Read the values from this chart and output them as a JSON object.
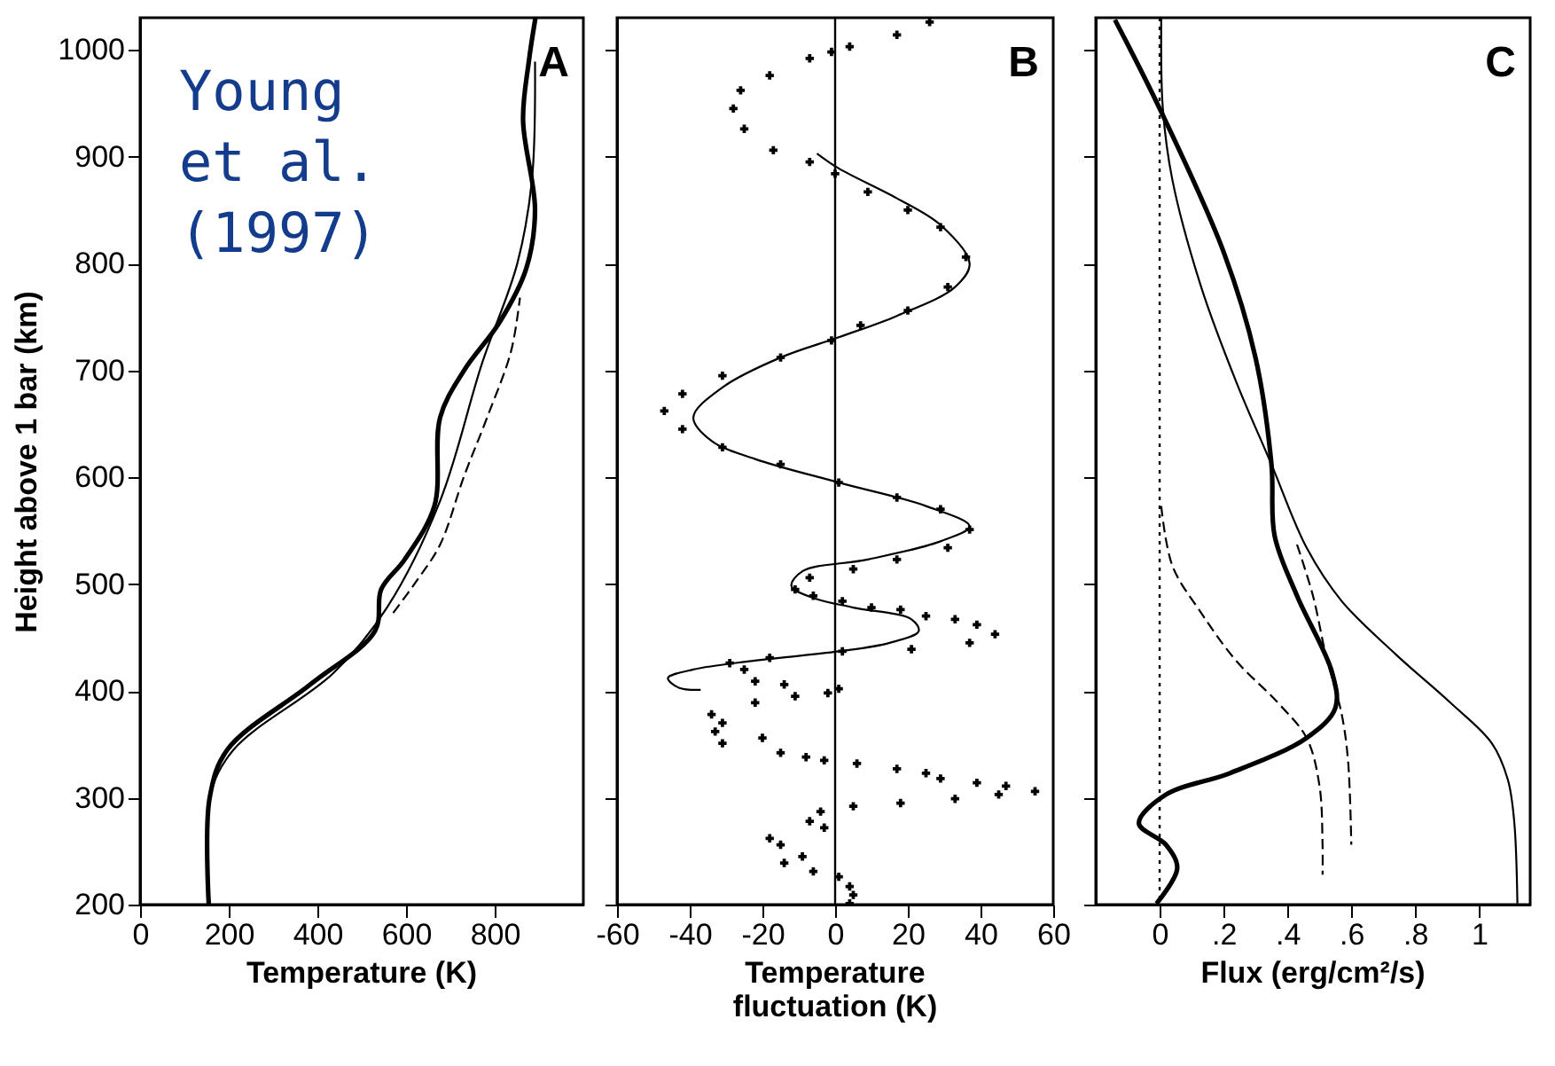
{
  "chart_data": [
    {
      "type": "line",
      "xlabel": "Temperature (K)",
      "ylabel": "Height above 1 bar (km)",
      "xlim": [
        0,
        1000
      ],
      "ylim": [
        200,
        1030
      ],
      "xticks": [
        0,
        200,
        400,
        600,
        800
      ],
      "yticks": [
        200,
        300,
        400,
        500,
        600,
        700,
        800,
        900,
        1000
      ],
      "annotations": [
        "A",
        "Young et al. (1997)"
      ],
      "grid": false,
      "marker": "none",
      "series": [
        {
          "color": "#000000",
          "line_style": "solid",
          "x": [
            155,
            157,
            197,
            384,
            530,
            544,
            597,
            664,
            677,
            731,
            811,
            871,
            891,
            864,
            877,
            892
          ],
          "values": [
            200,
            300,
            345,
            406,
            456,
            495,
            523,
            573,
            656,
            700,
            745,
            795,
            850,
            934,
            989,
            1030
          ]
        },
        {
          "color": "#000000",
          "line_style": "solid",
          "x": [
            157,
            157,
            211,
            437,
            557,
            677,
            771,
            851,
            884,
            891
          ],
          "values": [
            200,
            300,
            345,
            417,
            478,
            578,
            706,
            800,
            878,
            989
          ]
        },
        {
          "color": "#000000",
          "line_style": "dashed",
          "x": [
            571,
            624,
            677,
            731,
            784,
            837,
            857
          ],
          "values": [
            473,
            503,
            537,
            601,
            657,
            718,
            768
          ]
        }
      ]
    },
    {
      "type": "line",
      "xlabel": "Temperature fluctuation (K)",
      "xlim": [
        -60,
        60
      ],
      "ylim": [
        200,
        1030
      ],
      "xticks": [
        -60,
        -40,
        -20,
        0,
        20,
        40,
        60
      ],
      "yticks": [
        200,
        300,
        400,
        500,
        600,
        700,
        800,
        900,
        1000
      ],
      "tick_labels": "x",
      "annotations": [
        "B"
      ],
      "grid": false,
      "ref_lines": [
        {
          "axis": "x",
          "value": 0
        }
      ],
      "series": [
        {
          "type": "scatter",
          "marker": "cross",
          "color": "#000000",
          "x": [
            26,
            17,
            4,
            -1,
            -7,
            -18,
            -26,
            -28,
            -25,
            -17,
            -7,
            0,
            9,
            20,
            29,
            36,
            31,
            20,
            7,
            -1,
            -15,
            -31,
            -42,
            -47,
            -42,
            -31,
            -15,
            1,
            17,
            29,
            37,
            31,
            17,
            5,
            -7,
            -11,
            -6,
            2,
            10,
            18,
            25,
            33,
            39,
            44,
            37,
            21,
            2,
            -18,
            -29,
            -25,
            -22,
            -14,
            -11,
            -22,
            -2,
            1,
            -34,
            -31,
            -33,
            -31,
            -20,
            -15,
            -8,
            -3,
            6,
            17,
            25,
            29,
            39,
            47,
            55,
            45,
            33,
            18,
            5,
            -4,
            -7,
            -3,
            -18,
            -15,
            -9,
            -14,
            -6,
            1,
            4,
            5,
            4
          ],
          "values": [
            1026,
            1014,
            1003,
            998,
            992,
            976,
            962,
            945,
            926,
            906,
            895,
            884,
            867,
            850,
            834,
            806,
            778,
            756,
            742,
            728,
            712,
            695,
            678,
            662,
            645,
            628,
            612,
            595,
            581,
            570,
            551,
            534,
            523,
            514,
            506,
            495,
            489,
            484,
            478,
            476,
            470,
            467,
            462,
            453,
            445,
            439,
            437,
            431,
            426,
            420,
            409,
            406,
            395,
            389,
            398,
            402,
            378,
            370,
            362,
            351,
            356,
            342,
            338,
            335,
            332,
            327,
            323,
            318,
            314,
            311,
            306,
            303,
            299,
            295,
            292,
            287,
            278,
            272,
            262,
            256,
            245,
            239,
            231,
            226,
            217,
            209,
            201
          ]
        },
        {
          "type": "line",
          "marker": "none",
          "line_style": "solid",
          "color": "#000000",
          "x": [
            -5,
            1,
            17,
            29,
            37,
            33,
            17,
            1,
            -15,
            -31,
            -39,
            -34,
            -22,
            1,
            25,
            37,
            29,
            9,
            -9,
            -12,
            -6,
            5,
            21,
            23,
            15,
            1,
            -23,
            -39,
            -46,
            -43,
            -37
          ],
          "values": [
            903,
            889,
            861,
            836,
            800,
            778,
            751,
            731,
            712,
            684,
            656,
            634,
            617,
            595,
            573,
            554,
            540,
            523,
            512,
            498,
            487,
            478,
            467,
            456,
            445,
            437,
            428,
            420,
            412,
            403,
            401
          ]
        }
      ]
    },
    {
      "type": "line",
      "xlabel": "Flux (erg/cm²/s)",
      "xlim": [
        -0.2,
        1.16
      ],
      "ylim": [
        200,
        1030
      ],
      "xticks": [
        0,
        {
          "value": 0.2,
          "label": ".2"
        },
        {
          "value": 0.4,
          "label": ".4"
        },
        {
          "value": 0.6,
          "label": ".6"
        },
        {
          "value": 0.8,
          "label": ".8"
        },
        1
      ],
      "yticks": [
        200,
        300,
        400,
        500,
        600,
        700,
        800,
        900,
        1000
      ],
      "tick_labels": "x",
      "annotations": [
        "C"
      ],
      "grid": false,
      "marker": "none",
      "ref_lines": [
        {
          "axis": "x",
          "value": 0,
          "line_style": "dotted"
        }
      ],
      "series": [
        {
          "color": "#000000",
          "line_style": "solid",
          "x": [
            -0.14,
            0,
            0.2,
            0.3,
            0.35,
            0.36,
            0.43,
            0.54,
            0.55,
            0.46,
            0.22,
            0.02,
            -0.065,
            0.02,
            0.055,
            -0.01
          ],
          "values": [
            1028,
            945,
            811,
            712,
            612,
            545,
            489,
            417,
            384,
            356,
            323,
            303,
            276,
            256,
            234,
            201
          ]
        },
        {
          "color": "#000000",
          "line_style": "solid",
          "x": [
            0.005,
            0.01,
            0.04,
            0.13,
            0.24,
            0.35,
            0.46,
            0.57,
            0.74,
            0.91,
            1.04,
            1.09,
            1.11,
            1.12
          ],
          "values": [
            1030,
            945,
            878,
            778,
            689,
            612,
            534,
            484,
            434,
            389,
            351,
            317,
            278,
            201
          ]
        },
        {
          "color": "#000000",
          "line_style": "dashed",
          "x": [
            0.005,
            0.04,
            0.13,
            0.24,
            0.37,
            0.46,
            0.5,
            0.51,
            0.51
          ],
          "values": [
            573,
            517,
            473,
            428,
            389,
            356,
            312,
            256,
            228
          ]
        },
        {
          "color": "#000000",
          "line_style": "dashed",
          "x": [
            0.43,
            0.48,
            0.52,
            0.57,
            0.59,
            0.6
          ],
          "values": [
            537,
            489,
            434,
            378,
            334,
            256
          ]
        }
      ]
    }
  ]
}
